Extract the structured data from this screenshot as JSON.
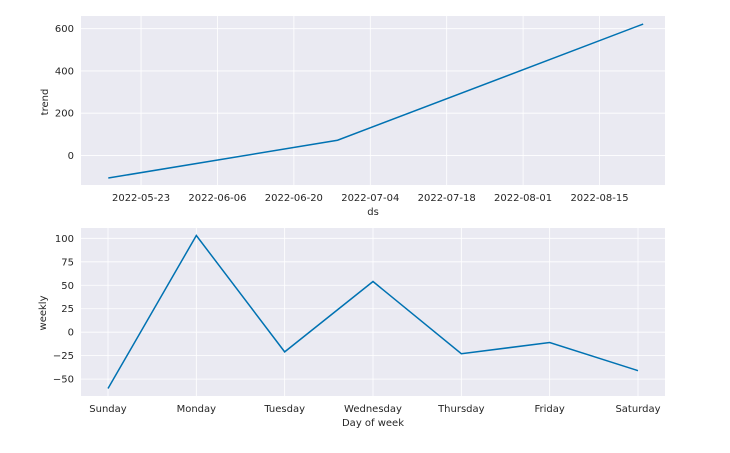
{
  "chart_data": [
    {
      "type": "line",
      "xlabel": "ds",
      "ylabel": "trend",
      "x_ticks": [
        "2022-05-23",
        "2022-06-06",
        "2022-06-20",
        "2022-07-04",
        "2022-07-18",
        "2022-08-01",
        "2022-08-15"
      ],
      "y_ticks": [
        0,
        200,
        400,
        600
      ],
      "xlim": [
        "2022-05-12",
        "2022-08-27"
      ],
      "ylim": [
        -140,
        660
      ],
      "grid": true,
      "line_color": "#0072b2",
      "series": [
        {
          "x": [
            "2022-05-17",
            "2022-06-28",
            "2022-08-23"
          ],
          "values": [
            -107,
            72,
            622
          ]
        }
      ]
    },
    {
      "type": "line",
      "xlabel": "Day of week",
      "ylabel": "weekly",
      "categories": [
        "Sunday",
        "Monday",
        "Tuesday",
        "Wednesday",
        "Thursday",
        "Friday",
        "Saturday"
      ],
      "y_ticks": [
        -50,
        -25,
        0,
        25,
        50,
        75,
        100
      ],
      "ylim": [
        -68,
        111
      ],
      "grid": true,
      "line_color": "#0072b2",
      "series": [
        {
          "values": [
            -60,
            103,
            -21,
            54,
            -23,
            -11,
            -41
          ]
        }
      ]
    }
  ]
}
